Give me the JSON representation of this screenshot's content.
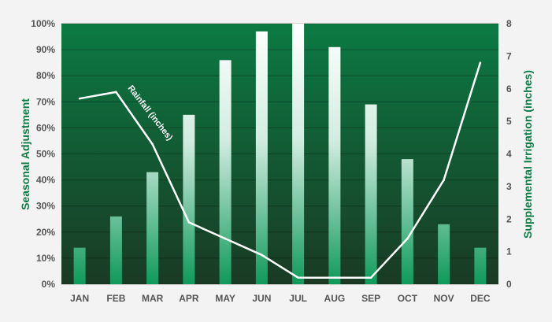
{
  "chart_data": {
    "type": "bar",
    "categories": [
      "JAN",
      "FEB",
      "MAR",
      "APR",
      "MAY",
      "JUN",
      "JUL",
      "AUG",
      "SEP",
      "OCT",
      "NOV",
      "DEC"
    ],
    "series": [
      {
        "type": "bar",
        "axis": "left",
        "values": [
          14,
          26,
          43,
          65,
          86,
          97,
          100,
          91,
          69,
          48,
          23,
          14
        ]
      },
      {
        "type": "line",
        "axis": "right",
        "values": [
          5.7,
          5.9,
          4.3,
          1.9,
          1.4,
          0.9,
          0.2,
          0.2,
          0.2,
          1.4,
          3.2,
          6.8
        ]
      }
    ],
    "ylabel": "Seasonal Adjustment",
    "y2label": "Supplemental Irrigation (inches)",
    "ylim": [
      0,
      100
    ],
    "y2lim": [
      0,
      8
    ],
    "yticks": [
      "0%",
      "10%",
      "20%",
      "30%",
      "40%",
      "50%",
      "60%",
      "70%",
      "80%",
      "90%",
      "100%"
    ],
    "y2ticks": [
      "0",
      "1",
      "2",
      "3",
      "4",
      "5",
      "6",
      "7",
      "8"
    ],
    "annotation": "Rainfall (inches)",
    "grid": true,
    "colors": {
      "plot_top": "#0b7a43",
      "plot_bottom": "#1a3a24",
      "bar_top": "#ffffff",
      "bar_bottom": "#0e9a5a",
      "line": "#ffffff",
      "axis_title": "#0e7a47",
      "tick": "#555555"
    }
  }
}
